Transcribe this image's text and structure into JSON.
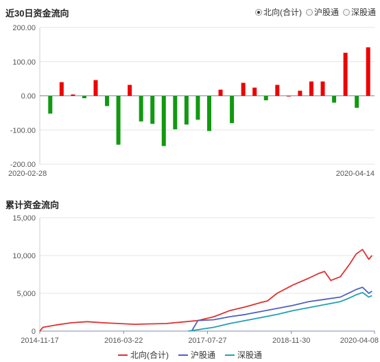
{
  "header": {
    "title": "近30日资金流向",
    "options": [
      {
        "label": "北向(合计)",
        "selected": true
      },
      {
        "label": "沪股通",
        "selected": false
      },
      {
        "label": "深股通",
        "selected": false
      }
    ]
  },
  "chart_data": [
    {
      "type": "bar",
      "title": "近30日资金流向",
      "ylim": [
        -200,
        200
      ],
      "yticks": [
        "200.00",
        "100.00",
        "0.00",
        "-100.00",
        "-200.00"
      ],
      "x_start_label": "2020-02-28",
      "x_end_label": "2020-04-14",
      "values": [
        -52,
        40,
        4,
        -7,
        46,
        -30,
        -143,
        32,
        -75,
        -82,
        -147,
        -98,
        -84,
        -70,
        -103,
        18,
        -80,
        38,
        24,
        -13,
        32,
        0,
        15,
        42,
        42,
        -20,
        126,
        -35,
        142
      ],
      "colors": {
        "positive": "#ee0000",
        "negative": "#119911"
      }
    },
    {
      "type": "line",
      "title": "累计资金流向",
      "ylim": [
        0,
        15000
      ],
      "yticks": [
        "15,000",
        "10,000",
        "5,000",
        "0"
      ],
      "xticks": [
        "2014-11-17",
        "2016-03-22",
        "2017-07-27",
        "2018-11-30",
        "2020-04-08"
      ],
      "series": [
        {
          "name": "北向(合计)",
          "color": "#e03030",
          "points": [
            [
              0,
              0
            ],
            [
              0.01,
              500
            ],
            [
              0.05,
              800
            ],
            [
              0.1,
              1100
            ],
            [
              0.15,
              1250
            ],
            [
              0.2,
              1100
            ],
            [
              0.25,
              1000
            ],
            [
              0.3,
              900
            ],
            [
              0.35,
              950
            ],
            [
              0.4,
              1000
            ],
            [
              0.45,
              1200
            ],
            [
              0.5,
              1400
            ],
            [
              0.55,
              1900
            ],
            [
              0.6,
              2700
            ],
            [
              0.65,
              3200
            ],
            [
              0.7,
              3800
            ],
            [
              0.72,
              4000
            ],
            [
              0.75,
              5000
            ],
            [
              0.8,
              6100
            ],
            [
              0.85,
              7000
            ],
            [
              0.88,
              7600
            ],
            [
              0.9,
              7900
            ],
            [
              0.92,
              6700
            ],
            [
              0.95,
              7200
            ],
            [
              0.98,
              8900
            ],
            [
              1.0,
              10200
            ],
            [
              1.02,
              10800
            ],
            [
              1.04,
              9500
            ],
            [
              1.05,
              10000
            ]
          ]
        },
        {
          "name": "沪股通",
          "color": "#5060c0",
          "points": [
            [
              0.48,
              0
            ],
            [
              0.5,
              1400
            ],
            [
              0.55,
              1500
            ],
            [
              0.6,
              1900
            ],
            [
              0.65,
              2200
            ],
            [
              0.7,
              2600
            ],
            [
              0.75,
              3000
            ],
            [
              0.8,
              3400
            ],
            [
              0.85,
              3900
            ],
            [
              0.9,
              4200
            ],
            [
              0.95,
              4500
            ],
            [
              0.98,
              5100
            ],
            [
              1.0,
              5500
            ],
            [
              1.02,
              5800
            ],
            [
              1.04,
              5000
            ],
            [
              1.05,
              5300
            ]
          ]
        },
        {
          "name": "深股通",
          "color": "#20a0b0",
          "points": [
            [
              0.47,
              0
            ],
            [
              0.55,
              500
            ],
            [
              0.6,
              1000
            ],
            [
              0.65,
              1400
            ],
            [
              0.7,
              1800
            ],
            [
              0.75,
              2200
            ],
            [
              0.8,
              2700
            ],
            [
              0.85,
              3100
            ],
            [
              0.9,
              3500
            ],
            [
              0.95,
              3900
            ],
            [
              0.98,
              4400
            ],
            [
              1.0,
              4800
            ],
            [
              1.02,
              5100
            ],
            [
              1.04,
              4500
            ],
            [
              1.05,
              4700
            ]
          ]
        }
      ]
    }
  ],
  "section2": {
    "title": "累计资金流向"
  }
}
